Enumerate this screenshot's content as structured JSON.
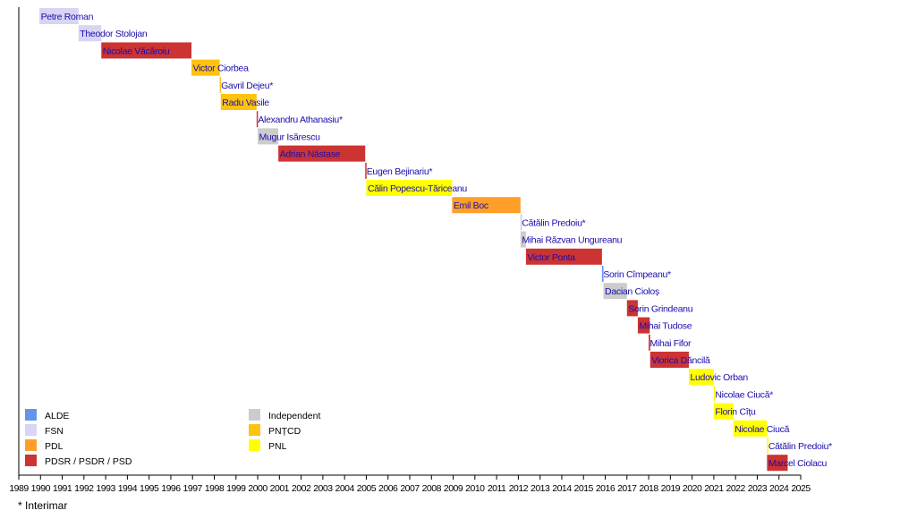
{
  "chart_data": {
    "type": "timeline",
    "title": "",
    "xlabel": "",
    "ylabel": "",
    "xlim": [
      1989,
      2025
    ],
    "x_ticks": [
      "1989",
      "1990",
      "1991",
      "1992",
      "1993",
      "1994",
      "1995",
      "1996",
      "1997",
      "1998",
      "1999",
      "2000",
      "2001",
      "2002",
      "2003",
      "2004",
      "2005",
      "2006",
      "2007",
      "2008",
      "2009",
      "2010",
      "2011",
      "2012",
      "2013",
      "2014",
      "2015",
      "2016",
      "2017",
      "2018",
      "2019",
      "2020",
      "2021",
      "2022",
      "2023",
      "2024",
      "2025"
    ],
    "parties": {
      "ALDE": "#6495ed",
      "FSN": "#d8d4f4",
      "PDL": "#ff9f2a",
      "PDSR / PSDR / PSD": "#cc3333",
      "Independent": "#cccccc",
      "PNȚCD": "#ffc30f",
      "PNL": "#ffff00"
    },
    "legend": {
      "left": [
        "ALDE",
        "FSN",
        "PDL",
        "PDSR / PSDR / PSD"
      ],
      "right": [
        "Independent",
        "PNȚCD",
        "PNL"
      ],
      "placement": "bottom-left"
    },
    "series": [
      {
        "name": "Petre Roman",
        "party": "FSN",
        "start": 1989.95,
        "end": 1991.75
      },
      {
        "name": "Theodor Stolojan",
        "party": "FSN",
        "start": 1991.75,
        "end": 1992.8
      },
      {
        "name": "Nicolae Văcăroiu",
        "party": "PDSR / PSDR / PSD",
        "start": 1992.8,
        "end": 1996.95
      },
      {
        "name": "Victor Ciorbea",
        "party": "PNȚCD",
        "start": 1996.95,
        "end": 1998.25
      },
      {
        "name": "Gavril Dejeu*",
        "party": "PNȚCD",
        "start": 1998.25,
        "end": 1998.3
      },
      {
        "name": "Radu Vasile",
        "party": "PNȚCD",
        "start": 1998.3,
        "end": 1999.95
      },
      {
        "name": "Alexandru Athanasiu*",
        "party": "PDSR / PSDR / PSD",
        "start": 1999.95,
        "end": 2000.0
      },
      {
        "name": "Mugur Isărescu",
        "party": "Independent",
        "start": 2000.0,
        "end": 2000.95
      },
      {
        "name": "Adrian Năstase",
        "party": "PDSR / PSDR / PSD",
        "start": 2000.95,
        "end": 2004.95
      },
      {
        "name": "Eugen Bejinariu*",
        "party": "PDSR / PSDR / PSD",
        "start": 2004.95,
        "end": 2005.0
      },
      {
        "name": "Călin Popescu-Tăriceanu",
        "party": "PNL",
        "start": 2005.0,
        "end": 2008.95
      },
      {
        "name": "Emil Boc",
        "party": "PDL",
        "start": 2008.95,
        "end": 2012.1
      },
      {
        "name": "Cătălin Predoiu*",
        "party": "Independent",
        "start": 2012.1,
        "end": 2012.13
      },
      {
        "name": "Mihai Răzvan Ungureanu",
        "party": "Independent",
        "start": 2012.1,
        "end": 2012.35
      },
      {
        "name": "Victor Ponta",
        "party": "PDSR / PSDR / PSD",
        "start": 2012.35,
        "end": 2015.85
      },
      {
        "name": "Sorin Cîmpeanu*",
        "party": "ALDE",
        "start": 2015.85,
        "end": 2015.92
      },
      {
        "name": "Dacian Cioloș",
        "party": "Independent",
        "start": 2015.92,
        "end": 2017.0
      },
      {
        "name": "Sorin Grindeanu",
        "party": "PDSR / PSDR / PSD",
        "start": 2017.0,
        "end": 2017.5
      },
      {
        "name": "Mihai Tudose",
        "party": "PDSR / PSDR / PSD",
        "start": 2017.5,
        "end": 2018.05
      },
      {
        "name": "Mihai Fifor",
        "party": "PDSR / PSDR / PSD",
        "start": 2018.0,
        "end": 2018.07
      },
      {
        "name": "Viorica Dăncilă",
        "party": "PDSR / PSDR / PSD",
        "start": 2018.07,
        "end": 2019.85
      },
      {
        "name": "Ludovic Orban",
        "party": "PNL",
        "start": 2019.85,
        "end": 2021.0
      },
      {
        "name": "Nicolae Ciucă*",
        "party": "PNL",
        "start": 2021.0,
        "end": 2021.05
      },
      {
        "name": "Florin Cîțu",
        "party": "PNL",
        "start": 2021.0,
        "end": 2021.9
      },
      {
        "name": "Nicolae Ciucă",
        "party": "PNL",
        "start": 2021.9,
        "end": 2023.45
      },
      {
        "name": "Cătălin Predoiu*",
        "party": "PNL",
        "start": 2023.45,
        "end": 2023.5
      },
      {
        "name": "Marcel Ciolacu",
        "party": "PDSR / PSDR / PSD",
        "start": 2023.45,
        "end": 2024.4
      }
    ],
    "footnote": "* Interimar",
    "grid": false
  }
}
